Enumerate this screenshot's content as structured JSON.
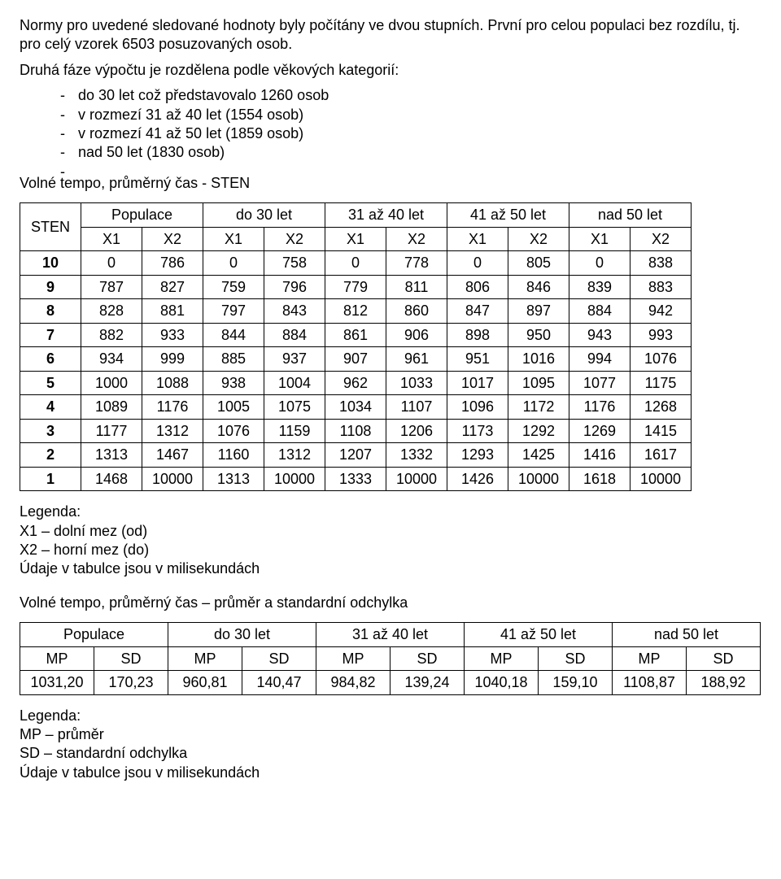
{
  "intro": {
    "p1": "Normy pro uvedené sledované hodnoty byly počítány ve dvou stupních. První pro celou populaci bez rozdílu, tj. pro celý vzorek 6503 posuzovaných osob.",
    "p2": "Druhá fáze výpočtu je rozdělena podle věkových kategorií:",
    "bullets": [
      "do 30 let což představovalo 1260 osob",
      "v rozmezí 31 až 40 let (1554 osob)",
      "v rozmezí 41 až 50 let (1859 osob)",
      "nad 50 let (1830 osob)",
      ""
    ]
  },
  "section1": {
    "title": "Volné tempo, průměrný čas - STEN",
    "row_label": "STEN",
    "group_headers": [
      "Populace",
      "do 30 let",
      "31 až 40 let",
      "41 až 50 let",
      "nad 50 let"
    ],
    "sub_headers": [
      "X1",
      "X2"
    ],
    "rows": [
      {
        "sten": "10",
        "cells": [
          "0",
          "786",
          "0",
          "758",
          "0",
          "778",
          "0",
          "805",
          "0",
          "838"
        ]
      },
      {
        "sten": "9",
        "cells": [
          "787",
          "827",
          "759",
          "796",
          "779",
          "811",
          "806",
          "846",
          "839",
          "883"
        ]
      },
      {
        "sten": "8",
        "cells": [
          "828",
          "881",
          "797",
          "843",
          "812",
          "860",
          "847",
          "897",
          "884",
          "942"
        ]
      },
      {
        "sten": "7",
        "cells": [
          "882",
          "933",
          "844",
          "884",
          "861",
          "906",
          "898",
          "950",
          "943",
          "993"
        ]
      },
      {
        "sten": "6",
        "cells": [
          "934",
          "999",
          "885",
          "937",
          "907",
          "961",
          "951",
          "1016",
          "994",
          "1076"
        ]
      },
      {
        "sten": "5",
        "cells": [
          "1000",
          "1088",
          "938",
          "1004",
          "962",
          "1033",
          "1017",
          "1095",
          "1077",
          "1175"
        ]
      },
      {
        "sten": "4",
        "cells": [
          "1089",
          "1176",
          "1005",
          "1075",
          "1034",
          "1107",
          "1096",
          "1172",
          "1176",
          "1268"
        ]
      },
      {
        "sten": "3",
        "cells": [
          "1177",
          "1312",
          "1076",
          "1159",
          "1108",
          "1206",
          "1173",
          "1292",
          "1269",
          "1415"
        ]
      },
      {
        "sten": "2",
        "cells": [
          "1313",
          "1467",
          "1160",
          "1312",
          "1207",
          "1332",
          "1293",
          "1425",
          "1416",
          "1617"
        ]
      },
      {
        "sten": "1",
        "cells": [
          "1468",
          "10000",
          "1313",
          "10000",
          "1333",
          "10000",
          "1426",
          "10000",
          "1618",
          "10000"
        ]
      }
    ],
    "legend": {
      "title": "Legenda:",
      "lines": [
        "X1 – dolní mez (od)",
        "X2 – horní mez (do)",
        "Údaje v tabulce jsou v milisekundách"
      ]
    }
  },
  "section2": {
    "title": "Volné tempo, průměrný čas – průměr a standardní odchylka",
    "group_headers": [
      "Populace",
      "do 30 let",
      "31 až 40 let",
      "41 až 50 let",
      "nad 50 let"
    ],
    "sub_headers": [
      "MP",
      "SD"
    ],
    "row": [
      "1031,20",
      "170,23",
      "960,81",
      "140,47",
      "984,82",
      "139,24",
      "1040,18",
      "159,10",
      "1108,87",
      "188,92"
    ],
    "legend": {
      "title": "Legenda:",
      "lines": [
        "MP – průměr",
        "SD – standardní odchylka",
        "Údaje v tabulce jsou v milisekundách"
      ]
    }
  }
}
